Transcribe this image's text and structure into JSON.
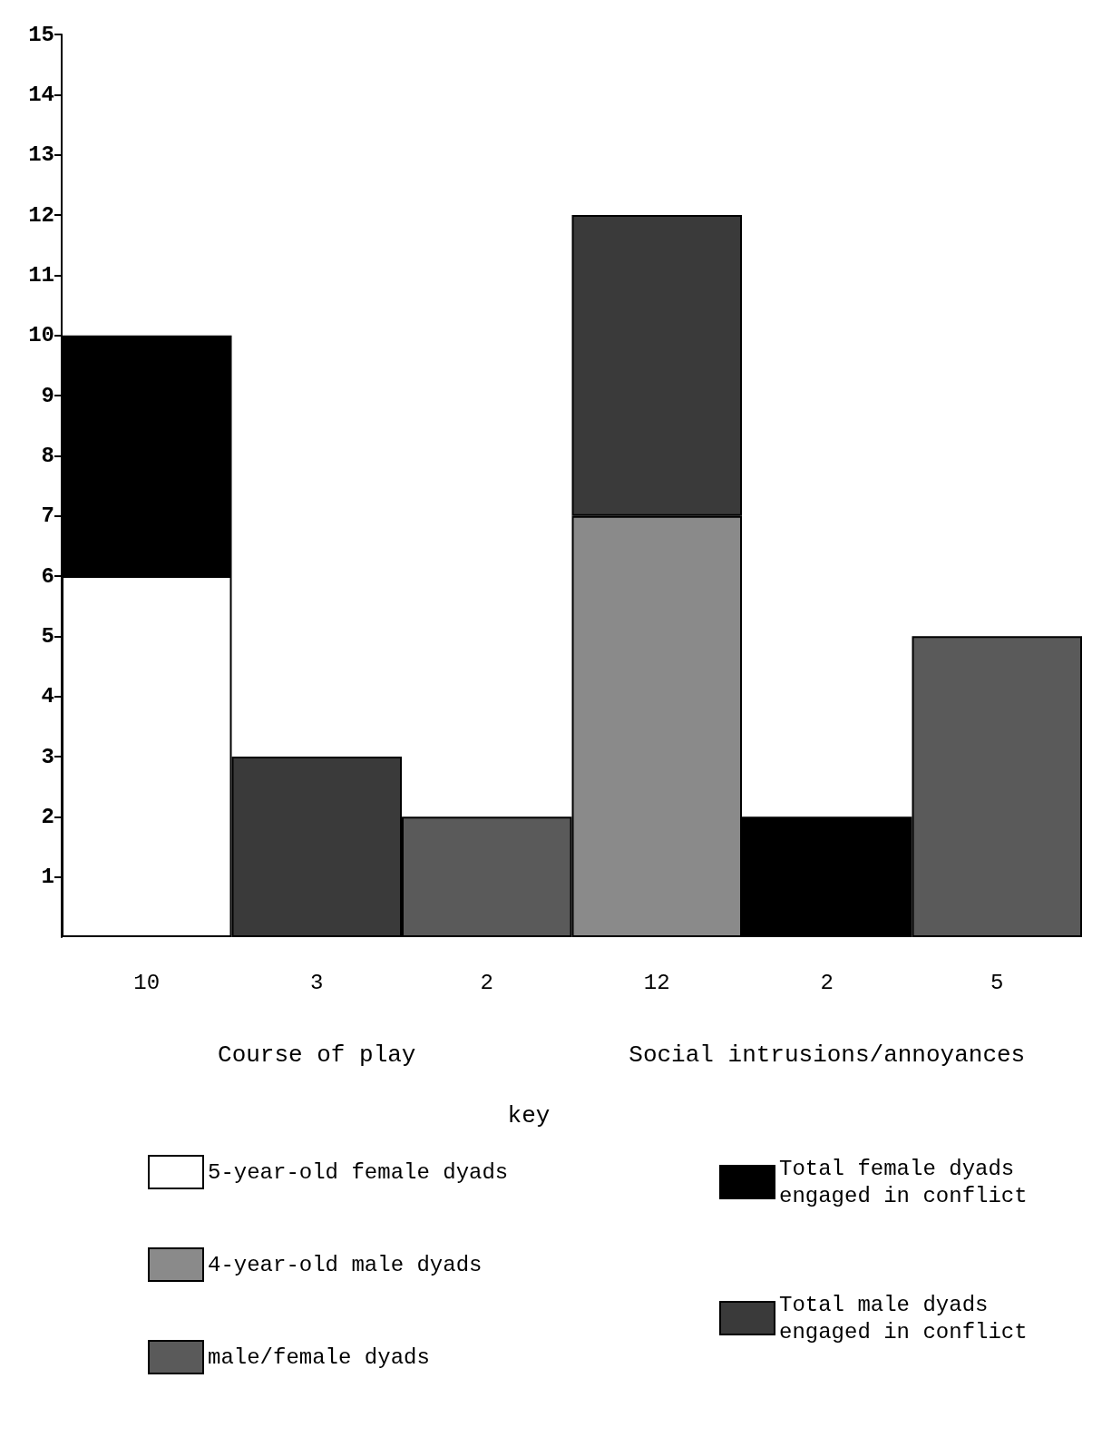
{
  "chart_data": {
    "type": "bar",
    "stacked": true,
    "categories": [
      null,
      null,
      null,
      null,
      null,
      null
    ],
    "series": [
      {
        "name": "5-year-old female dyads",
        "color": "#ffffff",
        "values": [
          6,
          null,
          null,
          null,
          null,
          null
        ]
      },
      {
        "name": "4-year-old male dyads",
        "color": "#8a8a8a",
        "values": [
          null,
          null,
          null,
          7,
          null,
          null
        ]
      },
      {
        "name": "male/female dyads",
        "color": "#5a5a5a",
        "values": [
          null,
          null,
          2,
          null,
          null,
          5
        ]
      },
      {
        "name": "Total female dyads engaged in conflict",
        "color": "#000000",
        "values": [
          4,
          null,
          null,
          null,
          2,
          null
        ]
      },
      {
        "name": "Total male dyads engaged in conflict",
        "color": "#3a3a3a",
        "values": [
          null,
          3,
          null,
          5,
          null,
          null
        ]
      }
    ],
    "totals": [
      "10",
      "3",
      "2",
      "12",
      "2",
      "5"
    ],
    "annotations": [
      "Course of play",
      "Social intrusions/annoyances"
    ],
    "legend_title": "key",
    "legend": "bottom",
    "ylim": [
      0,
      15
    ],
    "yticks": [
      1,
      2,
      3,
      4,
      5,
      6,
      7,
      8,
      9,
      10,
      11,
      12,
      13,
      14,
      15
    ],
    "grid": false
  }
}
